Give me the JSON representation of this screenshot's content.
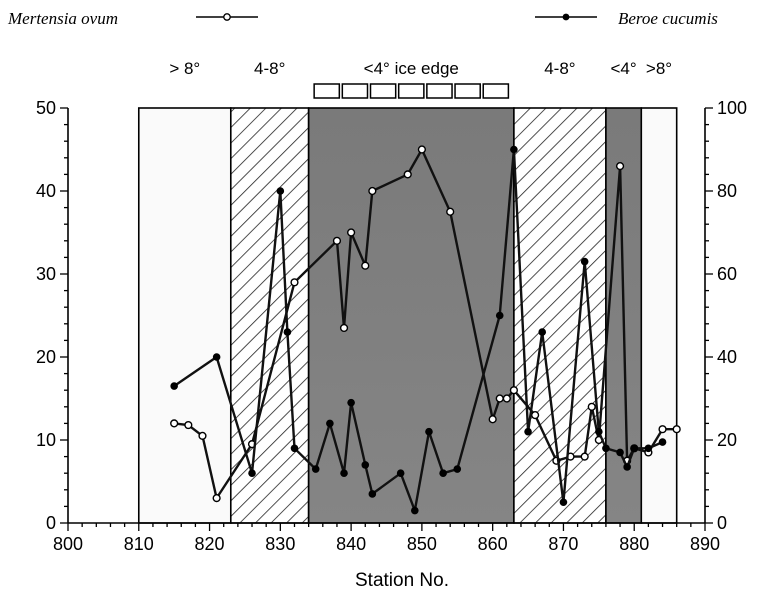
{
  "chart_data": {
    "type": "line",
    "xlabel": "Station No.",
    "xlim": [
      800,
      890
    ],
    "ylim_left": [
      0,
      50
    ],
    "ylim_right": [
      0,
      100
    ],
    "x_ticks": [
      "800",
      "810",
      "820",
      "830",
      "840",
      "850",
      "860",
      "870",
      "880",
      "890"
    ],
    "y_left_ticks": [
      "0",
      "10",
      "20",
      "30",
      "40",
      "50"
    ],
    "y_right_ticks": [
      "0",
      "20",
      "40",
      "60",
      "80",
      "100"
    ],
    "legend": {
      "placement": "top",
      "mertensia": "Mertensia ovum",
      "beroe": "Beroe cucumis"
    },
    "zones": [
      {
        "from": 810,
        "to": 823,
        "label": "> 8°",
        "fill": "plain"
      },
      {
        "from": 823,
        "to": 834,
        "label": "4-8°",
        "fill": "hatch"
      },
      {
        "from": 834,
        "to": 863,
        "label": "<4° ice edge",
        "fill": "dark"
      },
      {
        "from": 863,
        "to": 876,
        "label": "4-8°",
        "fill": "hatch"
      },
      {
        "from": 876,
        "to": 881,
        "label": "<4°",
        "fill": "dark"
      },
      {
        "from": 881,
        "to": 886,
        "label": ">8°",
        "fill": "plain"
      }
    ],
    "ice_boxes": 7,
    "series": [
      {
        "name": "Mertensia ovum",
        "axis": "left",
        "marker": "open",
        "x": [
          815,
          817,
          819,
          821,
          826,
          832,
          838,
          839,
          840,
          842,
          843,
          848,
          850,
          854,
          860,
          861,
          862,
          863,
          866,
          869,
          871,
          873,
          874,
          875,
          878,
          879,
          880,
          882,
          884,
          886
        ],
        "y": [
          12,
          11.8,
          10.5,
          3,
          9.5,
          29,
          34,
          23.5,
          35,
          31,
          40,
          42,
          45,
          37.5,
          12.5,
          15,
          15,
          16,
          13,
          7.5,
          8,
          8,
          14,
          10,
          43,
          7.5,
          9,
          8.5,
          11.3,
          11.3
        ]
      },
      {
        "name": "Beroe cucumis",
        "axis": "right",
        "marker": "filled",
        "x": [
          815,
          821,
          826,
          830,
          831,
          832,
          835,
          837,
          839,
          840,
          842,
          843,
          847,
          849,
          851,
          853,
          855,
          861,
          863,
          865,
          867,
          870,
          873,
          875,
          876,
          878,
          879,
          880,
          882,
          884
        ],
        "y": [
          33,
          40,
          12,
          80,
          46,
          18,
          13,
          24,
          12,
          29,
          14,
          7,
          12,
          3,
          22,
          12,
          13,
          50,
          90,
          22,
          46,
          5,
          63,
          22,
          18,
          17,
          13.5,
          18,
          18,
          19.5
        ]
      }
    ]
  }
}
